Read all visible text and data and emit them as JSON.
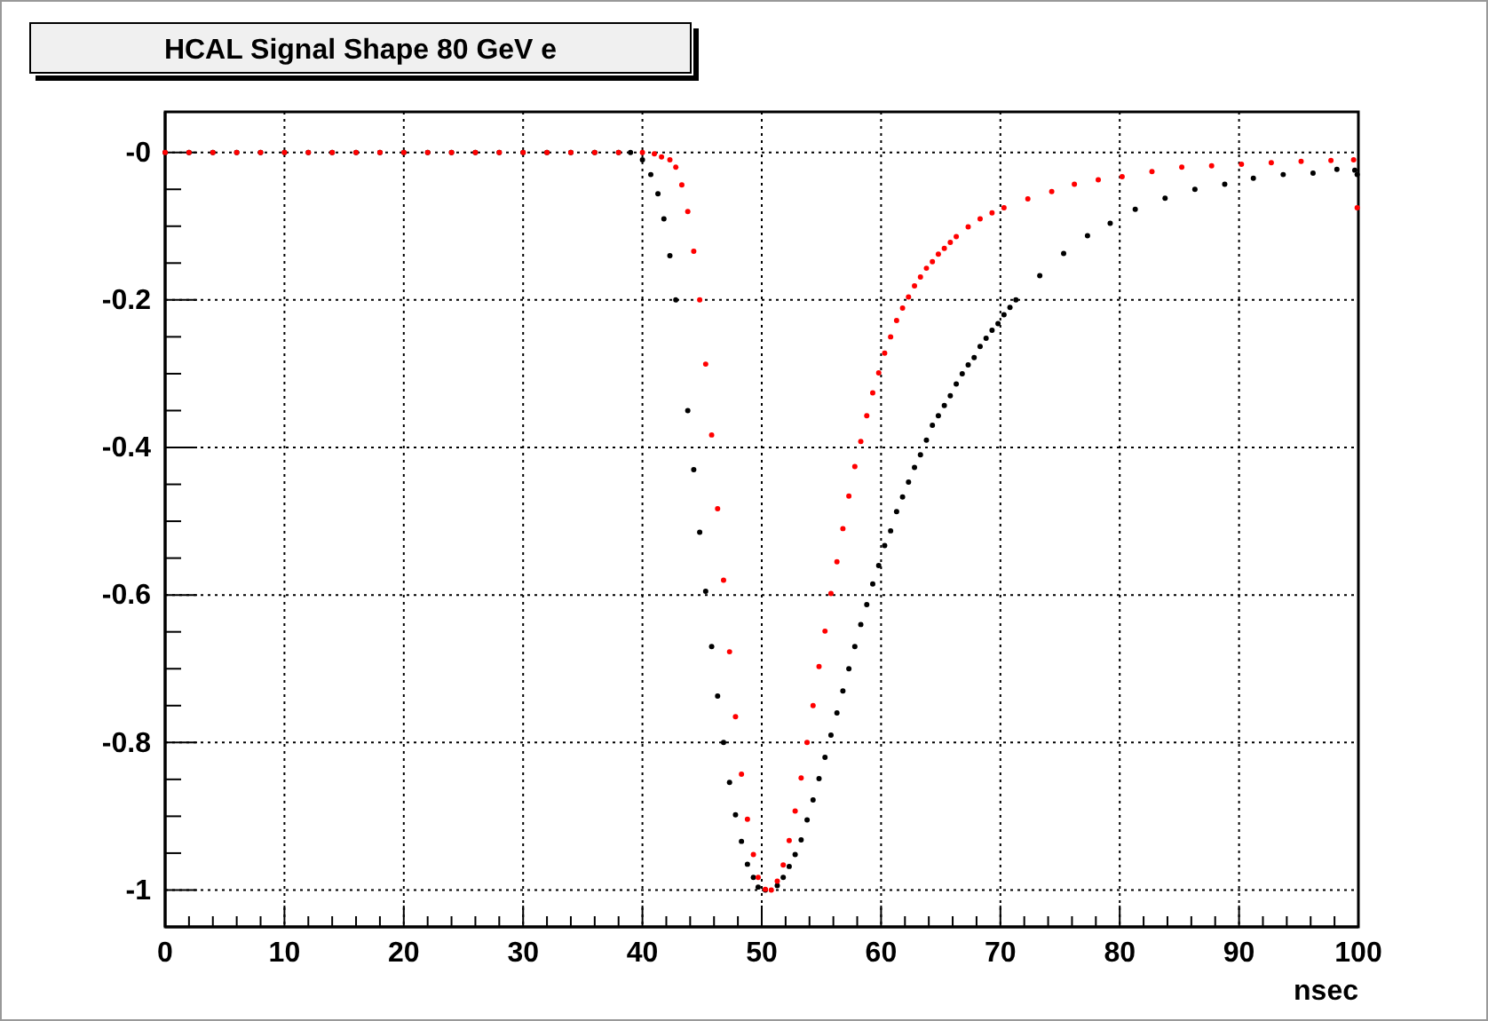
{
  "chart_data": {
    "type": "scatter",
    "title": "HCAL Signal Shape 80 GeV e",
    "xlabel": "nsec",
    "xlim": [
      0,
      100
    ],
    "ylim": [
      -1.05,
      0.055
    ],
    "xticks": [
      0,
      {
        "value": 2,
        "label": null
      },
      {
        "value": 4,
        "label": null
      },
      {
        "value": 6,
        "label": null
      },
      {
        "value": 8,
        "label": null
      },
      10,
      {
        "value": 12,
        "label": null
      },
      {
        "value": 14,
        "label": null
      },
      {
        "value": 16,
        "label": null
      },
      {
        "value": 18,
        "label": null
      },
      20,
      {
        "value": 22,
        "label": null
      },
      {
        "value": 24,
        "label": null
      },
      {
        "value": 26,
        "label": null
      },
      {
        "value": 28,
        "label": null
      },
      30,
      {
        "value": 32,
        "label": null
      },
      {
        "value": 34,
        "label": null
      },
      {
        "value": 36,
        "label": null
      },
      {
        "value": 38,
        "label": null
      },
      40,
      {
        "value": 42,
        "label": null
      },
      {
        "value": 44,
        "label": null
      },
      {
        "value": 46,
        "label": null
      },
      {
        "value": 48,
        "label": null
      },
      50,
      {
        "value": 52,
        "label": null
      },
      {
        "value": 54,
        "label": null
      },
      {
        "value": 56,
        "label": null
      },
      {
        "value": 58,
        "label": null
      },
      60,
      {
        "value": 62,
        "label": null
      },
      {
        "value": 64,
        "label": null
      },
      {
        "value": 66,
        "label": null
      },
      {
        "value": 68,
        "label": null
      },
      70,
      {
        "value": 72,
        "label": null
      },
      {
        "value": 74,
        "label": null
      },
      {
        "value": 76,
        "label": null
      },
      {
        "value": 78,
        "label": null
      },
      80,
      {
        "value": 82,
        "label": null
      },
      {
        "value": 84,
        "label": null
      },
      {
        "value": 86,
        "label": null
      },
      {
        "value": 88,
        "label": null
      },
      90,
      {
        "value": 92,
        "label": null
      },
      {
        "value": 94,
        "label": null
      },
      {
        "value": 96,
        "label": null
      },
      {
        "value": 98,
        "label": null
      },
      100
    ],
    "yticks": [
      {
        "value": 0,
        "label": "-0"
      },
      {
        "value": -0.05,
        "label": null
      },
      {
        "value": -0.1,
        "label": null
      },
      {
        "value": -0.15,
        "label": null
      },
      -0.2,
      {
        "value": -0.25,
        "label": null
      },
      {
        "value": -0.3,
        "label": null
      },
      {
        "value": -0.35,
        "label": null
      },
      -0.4,
      {
        "value": -0.45,
        "label": null
      },
      {
        "value": -0.5,
        "label": null
      },
      {
        "value": -0.55,
        "label": null
      },
      -0.6,
      {
        "value": -0.65,
        "label": null
      },
      {
        "value": -0.7,
        "label": null
      },
      {
        "value": -0.75,
        "label": null
      },
      -0.8,
      {
        "value": -0.85,
        "label": null
      },
      {
        "value": -0.9,
        "label": null
      },
      {
        "value": -0.95,
        "label": null
      },
      -1
    ],
    "grid": true,
    "marker": "circle",
    "series": [
      {
        "color": "#000000",
        "x": [
          0,
          2,
          4,
          6,
          8,
          10,
          12,
          14,
          16,
          18,
          20,
          22,
          24,
          26,
          28,
          30,
          32,
          34,
          36,
          38,
          39,
          40,
          40.7,
          41.3,
          41.8,
          42.3,
          42.8,
          43.8,
          44.3,
          44.8,
          45.3,
          45.8,
          46.3,
          46.8,
          47.3,
          47.8,
          48.3,
          48.8,
          49.3,
          49.7,
          50.3,
          51.3,
          51.8,
          52.3,
          52.8,
          53.3,
          53.8,
          54.3,
          54.8,
          55.3,
          55.8,
          56.3,
          56.8,
          57.3,
          57.8,
          58.3,
          58.8,
          59.3,
          59.8,
          60.3,
          60.8,
          61.3,
          61.8,
          62.3,
          62.8,
          63.3,
          63.8,
          64.3,
          64.8,
          65.3,
          65.8,
          66.3,
          66.8,
          67.3,
          67.8,
          68.3,
          68.8,
          69.3,
          69.8,
          70.3,
          70.8,
          71.3,
          73.3,
          75.3,
          77.3,
          79.2,
          81.3,
          83.8,
          86.3,
          88.8,
          91.2,
          93.7,
          96.2,
          98.2,
          99.7,
          99.9
        ],
        "values": [
          0,
          0,
          0,
          0,
          0,
          0,
          0,
          0,
          0,
          0,
          0,
          0,
          0,
          0,
          0,
          0,
          0,
          0,
          0,
          0,
          0,
          -0.01,
          -0.03,
          -0.056,
          -0.09,
          -0.14,
          -0.2,
          -0.35,
          -0.43,
          -0.515,
          -0.595,
          -0.67,
          -0.737,
          -0.8,
          -0.854,
          -0.898,
          -0.934,
          -0.965,
          -0.983,
          -0.996,
          -1,
          -0.994,
          -0.983,
          -0.968,
          -0.952,
          -0.932,
          -0.905,
          -0.878,
          -0.849,
          -0.82,
          -0.79,
          -0.76,
          -0.73,
          -0.7,
          -0.67,
          -0.64,
          -0.613,
          -0.585,
          -0.56,
          -0.533,
          -0.513,
          -0.487,
          -0.467,
          -0.447,
          -0.427,
          -0.41,
          -0.39,
          -0.37,
          -0.357,
          -0.343,
          -0.33,
          -0.314,
          -0.3,
          -0.288,
          -0.278,
          -0.263,
          -0.252,
          -0.241,
          -0.232,
          -0.22,
          -0.21,
          -0.2,
          -0.167,
          -0.137,
          -0.113,
          -0.096,
          -0.077,
          -0.062,
          -0.05,
          -0.043,
          -0.035,
          -0.03,
          -0.028,
          -0.023,
          -0.024,
          -0.03
        ]
      },
      {
        "color": "#ff0000",
        "x": [
          0,
          2,
          4,
          6,
          8,
          10,
          12,
          14,
          16,
          18,
          20,
          22,
          24,
          26,
          28,
          30,
          32,
          34,
          36,
          38,
          40,
          41,
          41.6,
          42.3,
          42.8,
          43.3,
          43.8,
          44.3,
          44.8,
          45.3,
          45.8,
          46.3,
          46.8,
          47.3,
          47.8,
          48.3,
          48.8,
          49.3,
          49.7,
          50.3,
          50.8,
          51.3,
          51.8,
          52.3,
          52.8,
          53.3,
          53.8,
          54.3,
          54.8,
          55.3,
          55.8,
          56.3,
          56.8,
          57.3,
          57.8,
          58.3,
          58.8,
          59.3,
          59.8,
          60.3,
          60.8,
          61.3,
          61.8,
          62.3,
          62.8,
          63.3,
          63.8,
          64.3,
          64.8,
          65.3,
          65.8,
          66.3,
          67.3,
          68.3,
          69.3,
          70.3,
          72.3,
          74.3,
          76.2,
          78.2,
          80.2,
          82.7,
          85.2,
          87.7,
          90.2,
          92.7,
          95.2,
          97.7,
          99.6,
          99.9
        ],
        "values": [
          0,
          0,
          0,
          0,
          0,
          0,
          0,
          0,
          0,
          0,
          0,
          0,
          0,
          0,
          0,
          0,
          0,
          0,
          0,
          0,
          0,
          -0.002,
          -0.006,
          -0.01,
          -0.02,
          -0.044,
          -0.08,
          -0.134,
          -0.2,
          -0.287,
          -0.383,
          -0.483,
          -0.58,
          -0.677,
          -0.765,
          -0.843,
          -0.904,
          -0.952,
          -0.983,
          -0.999,
          -1,
          -0.988,
          -0.966,
          -0.933,
          -0.893,
          -0.848,
          -0.8,
          -0.75,
          -0.697,
          -0.649,
          -0.598,
          -0.555,
          -0.51,
          -0.466,
          -0.426,
          -0.392,
          -0.357,
          -0.326,
          -0.299,
          -0.272,
          -0.25,
          -0.228,
          -0.211,
          -0.196,
          -0.181,
          -0.169,
          -0.157,
          -0.148,
          -0.138,
          -0.13,
          -0.122,
          -0.114,
          -0.101,
          -0.09,
          -0.082,
          -0.075,
          -0.063,
          -0.053,
          -0.043,
          -0.037,
          -0.033,
          -0.026,
          -0.02,
          -0.018,
          -0.016,
          -0.014,
          -0.012,
          -0.011,
          -0.01,
          -0.075
        ]
      }
    ]
  }
}
